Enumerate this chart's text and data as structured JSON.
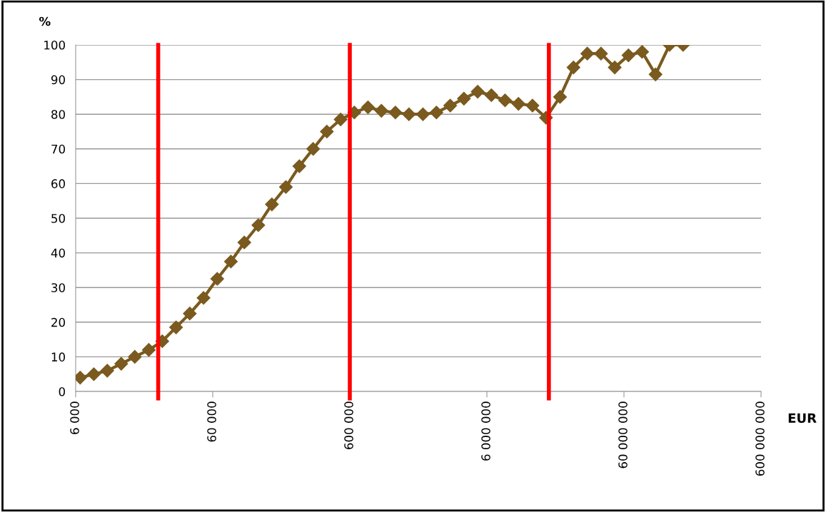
{
  "chart_data": {
    "type": "line",
    "xlabel": "EUR",
    "ylabel": "%",
    "log": "x",
    "x": [
      6470,
      8140,
      10200,
      12900,
      16200,
      20500,
      25700,
      32400,
      40800,
      51400,
      64700,
      81400,
      102000,
      129000,
      162000,
      205000,
      257000,
      324000,
      408000,
      514000,
      647000,
      814000,
      1020000,
      1290000,
      1620000,
      2050000,
      2570000,
      3240000,
      4080000,
      5140000,
      6470000,
      8140000,
      10200000,
      12900000,
      16200000,
      20500000,
      25700000,
      32400000,
      40800000,
      51400000,
      64700000,
      81400000,
      102000000,
      129000000,
      162000000
    ],
    "series": [
      {
        "color": "#7a5a1e",
        "values": [
          4,
          5,
          6,
          8,
          10,
          12,
          14.5,
          18.5,
          22.5,
          27,
          32.5,
          37.5,
          43,
          48,
          54,
          59,
          65,
          70,
          75,
          78.5,
          80.5,
          82,
          81,
          80.5,
          80,
          80,
          80.5,
          82.5,
          84.5,
          86.5,
          85.5,
          84,
          83,
          82.5,
          79,
          85,
          93.5,
          97.5,
          97.5,
          93.5,
          97,
          98,
          91.5,
          100,
          100
        ]
      }
    ],
    "marker": "diamond",
    "line_style": "solid",
    "xlim": [
      6000,
      600000000
    ],
    "xticks": [
      {
        "value": 6000,
        "label": "6 000"
      },
      {
        "value": 60000,
        "label": "60 000"
      },
      {
        "value": 600000,
        "label": "600 000"
      },
      {
        "value": 6000000,
        "label": "6 000 000"
      },
      {
        "value": 60000000,
        "label": "60 000 000"
      },
      {
        "value": 600000000,
        "label": "600 000 000"
      }
    ],
    "ylim": [
      0,
      100
    ],
    "yticks": [
      0,
      10,
      20,
      30,
      40,
      50,
      60,
      70,
      80,
      90,
      100
    ],
    "grid": "y",
    "ref_lines": [
      {
        "axis": "x",
        "value": 24000,
        "color": "#ff0000"
      },
      {
        "axis": "x",
        "value": 600000,
        "color": "#ff0000"
      },
      {
        "axis": "x",
        "value": 17000000,
        "color": "#ff0000"
      }
    ]
  }
}
